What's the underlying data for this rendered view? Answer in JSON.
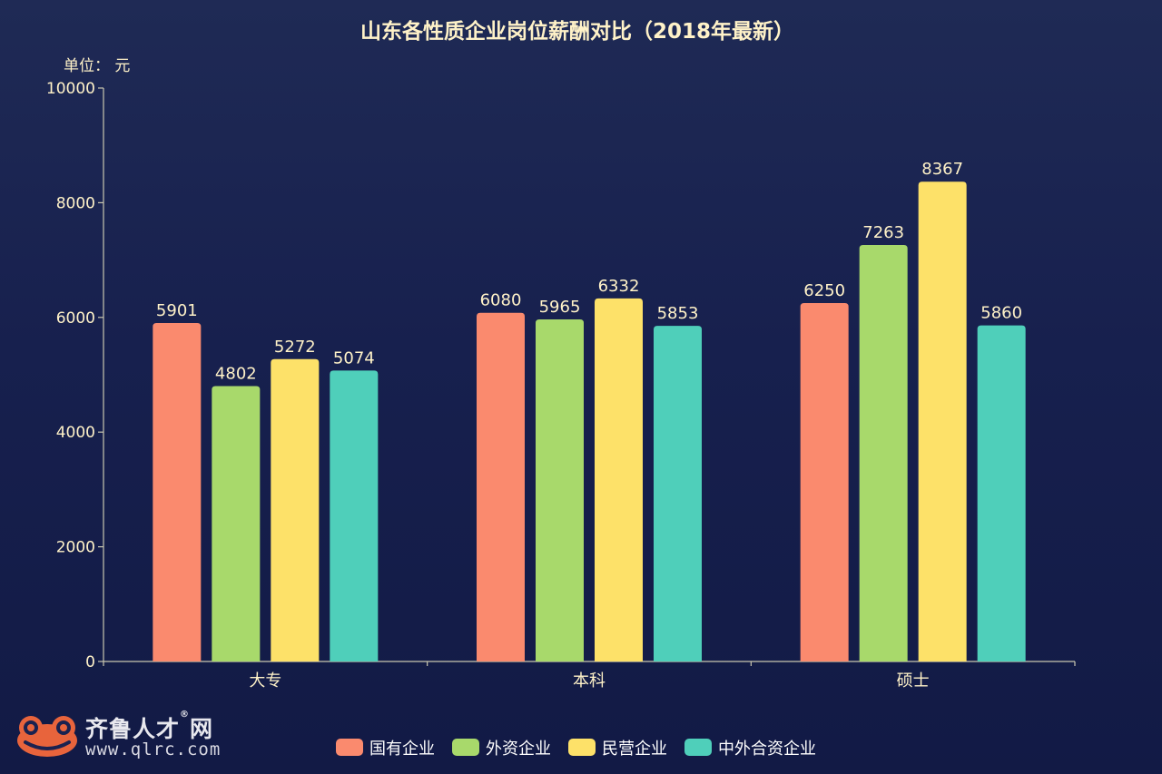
{
  "chart_data": {
    "type": "bar",
    "title": "山东各性质企业岗位薪酬对比（2018年最新）",
    "unit_label": "单位： 元",
    "categories": [
      "大专",
      "本科",
      "硕士"
    ],
    "series": [
      {
        "name": "国有企业",
        "color": "#fa8a6e",
        "values": [
          5901,
          6080,
          6250
        ]
      },
      {
        "name": "外资企业",
        "color": "#a8d96b",
        "values": [
          4802,
          5965,
          7263
        ]
      },
      {
        "name": "民营企业",
        "color": "#fde169",
        "values": [
          5272,
          6332,
          8367
        ]
      },
      {
        "name": "中外合资企业",
        "color": "#4fcfba",
        "values": [
          5074,
          5853,
          5860
        ]
      }
    ],
    "ylim": [
      0,
      10000
    ],
    "yticks": [
      0,
      2000,
      4000,
      6000,
      8000,
      10000
    ],
    "grid": false,
    "legend_position": "bottom-center",
    "text_color": "#fff2c8",
    "axis_color": "#c9c7b0"
  },
  "logo": {
    "name": "齐鲁人才",
    "name_suffix": "网",
    "reg_mark": "®",
    "url": "www.qlrc.com"
  }
}
